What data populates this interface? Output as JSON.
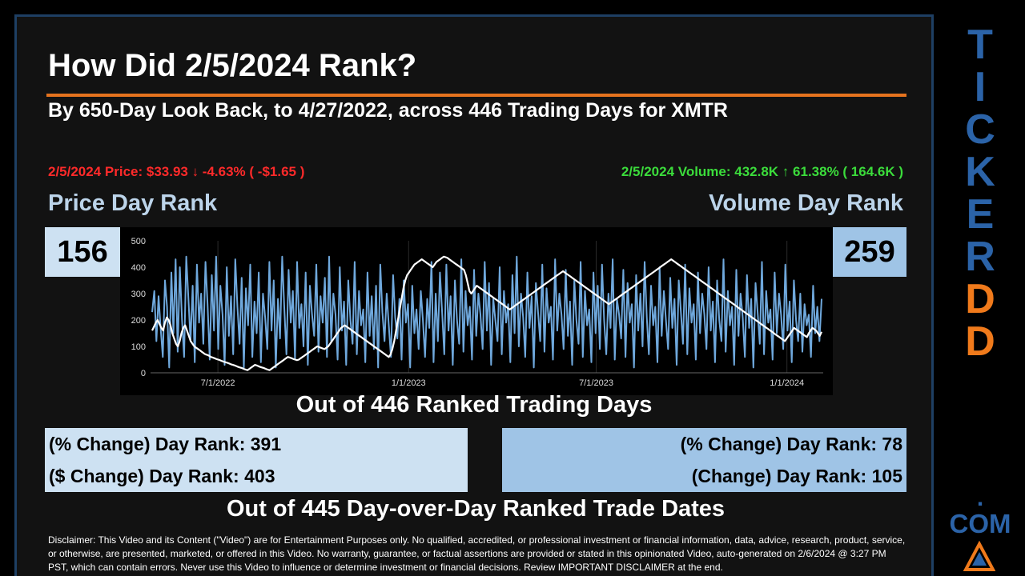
{
  "title": "How Did 2/5/2024 Rank?",
  "subtitle": "By 650-Day Look Back, to 4/27/2022, across 446 Trading Days for XMTR",
  "price_summary": "2/5/2024 Price: $33.93 ↓ -4.63% ( -$1.65 )",
  "volume_summary": "2/5/2024 Volume: 432.8K ↑ 61.38% ( 164.6K )",
  "price_rank_label": "Price Day Rank",
  "volume_rank_label": "Volume Day Rank",
  "price_rank": "156",
  "volume_rank": "259",
  "out_of_ranked": "Out of 446 Ranked Trading Days",
  "pct_change_price_rank": "(% Change) Day Rank: 391",
  "dollar_change_price_rank": "($ Change) Day Rank: 403",
  "pct_change_volume_rank": "(% Change) Day Rank: 78",
  "change_volume_rank": "(Change) Day Rank: 105",
  "out_of_dod": "Out of 445 Day-over-Day Ranked Trade Dates",
  "disclaimer": "Disclaimer: This Video and its Content (\"Video\") are for Entertainment Purposes only. No qualified, accredited, or professional investment or financial information, data, advice, research, product, service, or otherwise, are presented, marketed, or offered in this Video. No warranty, guarantee, or factual assertions are provided or stated in this opinionated Video, auto-generated on 2/6/2024 @ 3:27 PM PST, which can contain errors. Never use this Video to influence or determine investment or financial decisions. Review IMPORTANT DISCLAIMER at the end.",
  "brand_letters": [
    "T",
    "I",
    "C",
    "K",
    "E",
    "R",
    "D",
    "D"
  ],
  "brand_dot": ".",
  "brand_com": "COM",
  "colors": {
    "price_down": "#ff2a2a",
    "volume_up": "#3bdc3b",
    "accent": "#e5731e",
    "brand_blue": "#2b63a8",
    "brand_orange": "#f07a1b",
    "volume_series": "#6fa8dc",
    "price_series": "#ffffff"
  },
  "chart_data": {
    "type": "line",
    "x_range": [
      "2022-04-27",
      "2024-02-05"
    ],
    "ylim": [
      0,
      500
    ],
    "yticks": [
      0,
      100,
      200,
      300,
      400,
      500
    ],
    "xticks": [
      "7/1/2022",
      "1/1/2023",
      "7/1/2023",
      "1/1/2024"
    ],
    "grid": "vertical",
    "series": [
      {
        "color": "#6fa8dc",
        "values": [
          230,
          310,
          120,
          290,
          170,
          60,
          350,
          250,
          20,
          380,
          150,
          430,
          80,
          400,
          200,
          60,
          440,
          280,
          120,
          330,
          40,
          410,
          190,
          300,
          110,
          420,
          260,
          50,
          370,
          160,
          440,
          90,
          330,
          220,
          30,
          400,
          140,
          290,
          70,
          430,
          250,
          110,
          360,
          20,
          320,
          180,
          410,
          60,
          270,
          150,
          380,
          40,
          300,
          210,
          90,
          420,
          160,
          350,
          20,
          280,
          130,
          440,
          240,
          70,
          390,
          190,
          310,
          50,
          420,
          170,
          260,
          100,
          380,
          30,
          330,
          220,
          140,
          410,
          80,
          290,
          190,
          360,
          60,
          440,
          120,
          300,
          220,
          50,
          400,
          160,
          270,
          30,
          350,
          200,
          110,
          420,
          70,
          310,
          180,
          240,
          40,
          380,
          140,
          290,
          90,
          330,
          20,
          410,
          230,
          120,
          300,
          180,
          60,
          370,
          210,
          130,
          280,
          50,
          350,
          190,
          260,
          20,
          330,
          150,
          240,
          90,
          310,
          200,
          60,
          280,
          170,
          420,
          40,
          300,
          120,
          380,
          230,
          70,
          410,
          160,
          290,
          30,
          350,
          200,
          110,
          430,
          80,
          310,
          180,
          250,
          50,
          390,
          140,
          300,
          220,
          90,
          420,
          160,
          340,
          30,
          280,
          200,
          120,
          400,
          70,
          310,
          190,
          260,
          40,
          370,
          150,
          440,
          100,
          300,
          210,
          60,
          380,
          170,
          290,
          20,
          340,
          230,
          120,
          410,
          80,
          320,
          190,
          250,
          50,
          430,
          160,
          300,
          220,
          90,
          390,
          140,
          270,
          30,
          350,
          200,
          110,
          420,
          60,
          310,
          180,
          240,
          40,
          380,
          150,
          330,
          90,
          410,
          200,
          70,
          300,
          170,
          430,
          50,
          280,
          220,
          130,
          390,
          60,
          340,
          190,
          260,
          20,
          370,
          160,
          300,
          100,
          420,
          210,
          70,
          330,
          180,
          250,
          40,
          400,
          140,
          310,
          200,
          90,
          360,
          170,
          280,
          30,
          350,
          230,
          110,
          410,
          70,
          320,
          190,
          260,
          50,
          380,
          150,
          300,
          220,
          90,
          400,
          160,
          270,
          40,
          350,
          200,
          120,
          430,
          80,
          310,
          180,
          250,
          30,
          390,
          140,
          300,
          210,
          60,
          370,
          170,
          280,
          20,
          340,
          230,
          110,
          420,
          70,
          310,
          190,
          240,
          50,
          380,
          150,
          300,
          220,
          90,
          410,
          160,
          270,
          40,
          350,
          200,
          120,
          300,
          80,
          260,
          180,
          220,
          60,
          330,
          150,
          250,
          120,
          280
        ]
      },
      {
        "color": "#ffffff",
        "values": [
          160,
          175,
          190,
          200,
          185,
          170,
          160,
          190,
          210,
          200,
          180,
          150,
          130,
          110,
          100,
          120,
          150,
          170,
          180,
          160,
          140,
          120,
          110,
          100,
          95,
          90,
          85,
          80,
          75,
          70,
          68,
          65,
          60,
          58,
          55,
          52,
          50,
          48,
          45,
          42,
          40,
          38,
          35,
          32,
          30,
          28,
          25,
          22,
          20,
          18,
          15,
          12,
          10,
          15,
          20,
          25,
          30,
          28,
          25,
          22,
          20,
          18,
          15,
          12,
          10,
          15,
          20,
          25,
          30,
          35,
          40,
          45,
          50,
          55,
          60,
          58,
          55,
          52,
          50,
          48,
          50,
          55,
          60,
          65,
          70,
          75,
          80,
          85,
          90,
          95,
          100,
          98,
          95,
          92,
          90,
          95,
          100,
          110,
          120,
          130,
          140,
          150,
          160,
          170,
          175,
          180,
          175,
          170,
          165,
          160,
          155,
          150,
          145,
          140,
          135,
          130,
          125,
          120,
          115,
          110,
          105,
          100,
          95,
          90,
          85,
          80,
          75,
          70,
          65,
          60,
          70,
          90,
          120,
          160,
          200,
          240,
          280,
          320,
          350,
          370,
          380,
          390,
          400,
          410,
          415,
          420,
          425,
          430,
          425,
          420,
          415,
          410,
          405,
          400,
          410,
          420,
          425,
          430,
          435,
          440,
          438,
          435,
          430,
          425,
          420,
          415,
          410,
          405,
          400,
          395,
          390,
          370,
          340,
          310,
          300,
          310,
          320,
          330,
          325,
          320,
          315,
          310,
          305,
          300,
          295,
          290,
          285,
          280,
          275,
          270,
          265,
          260,
          255,
          250,
          245,
          240,
          245,
          250,
          255,
          260,
          265,
          270,
          275,
          280,
          285,
          290,
          295,
          300,
          305,
          310,
          315,
          320,
          325,
          330,
          335,
          340,
          345,
          350,
          355,
          360,
          365,
          370,
          375,
          380,
          385,
          380,
          375,
          370,
          365,
          360,
          355,
          350,
          345,
          340,
          335,
          330,
          325,
          320,
          315,
          310,
          305,
          300,
          295,
          290,
          285,
          280,
          275,
          270,
          265,
          260,
          265,
          270,
          275,
          280,
          285,
          290,
          295,
          300,
          305,
          310,
          315,
          320,
          325,
          330,
          335,
          340,
          345,
          350,
          355,
          360,
          365,
          370,
          375,
          380,
          385,
          390,
          395,
          400,
          405,
          410,
          415,
          420,
          425,
          430,
          425,
          420,
          415,
          410,
          405,
          400,
          395,
          390,
          385,
          380,
          375,
          370,
          365,
          360,
          355,
          350,
          345,
          340,
          335,
          330,
          325,
          320,
          315,
          310,
          305,
          300,
          295,
          290,
          285,
          280,
          275,
          270,
          265,
          260,
          255,
          250,
          245,
          240,
          235,
          230,
          225,
          220,
          215,
          210,
          205,
          200,
          195,
          190,
          185,
          180,
          175,
          170,
          165,
          160,
          155,
          150,
          145,
          140,
          135,
          130,
          125,
          120,
          130,
          140,
          150,
          160,
          170,
          165,
          160,
          155,
          150,
          145,
          140,
          135,
          150,
          160,
          170,
          165,
          160,
          150,
          140,
          155
        ]
      }
    ]
  }
}
